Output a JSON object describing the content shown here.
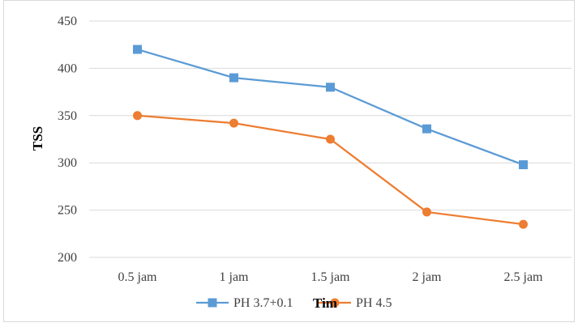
{
  "chart_data": {
    "type": "line",
    "categories": [
      "0.5 jam",
      "1 jam",
      "1.5 jam",
      "2 jam",
      "2.5 jam"
    ],
    "series": [
      {
        "name": "PH 3.7+0.1",
        "values": [
          420,
          390,
          380,
          336,
          298
        ],
        "color": "#5b9bd5",
        "marker": "square"
      },
      {
        "name": "PH 4.5",
        "values": [
          350,
          342,
          325,
          248,
          235
        ],
        "color": "#ed7d31",
        "marker": "circle"
      }
    ],
    "ylabel": "TSS",
    "xlabel": "Tim",
    "ylim": [
      200,
      450
    ],
    "yticks": [
      200,
      250,
      300,
      350,
      400,
      450
    ],
    "grid": true,
    "legend_position": "bottom"
  }
}
